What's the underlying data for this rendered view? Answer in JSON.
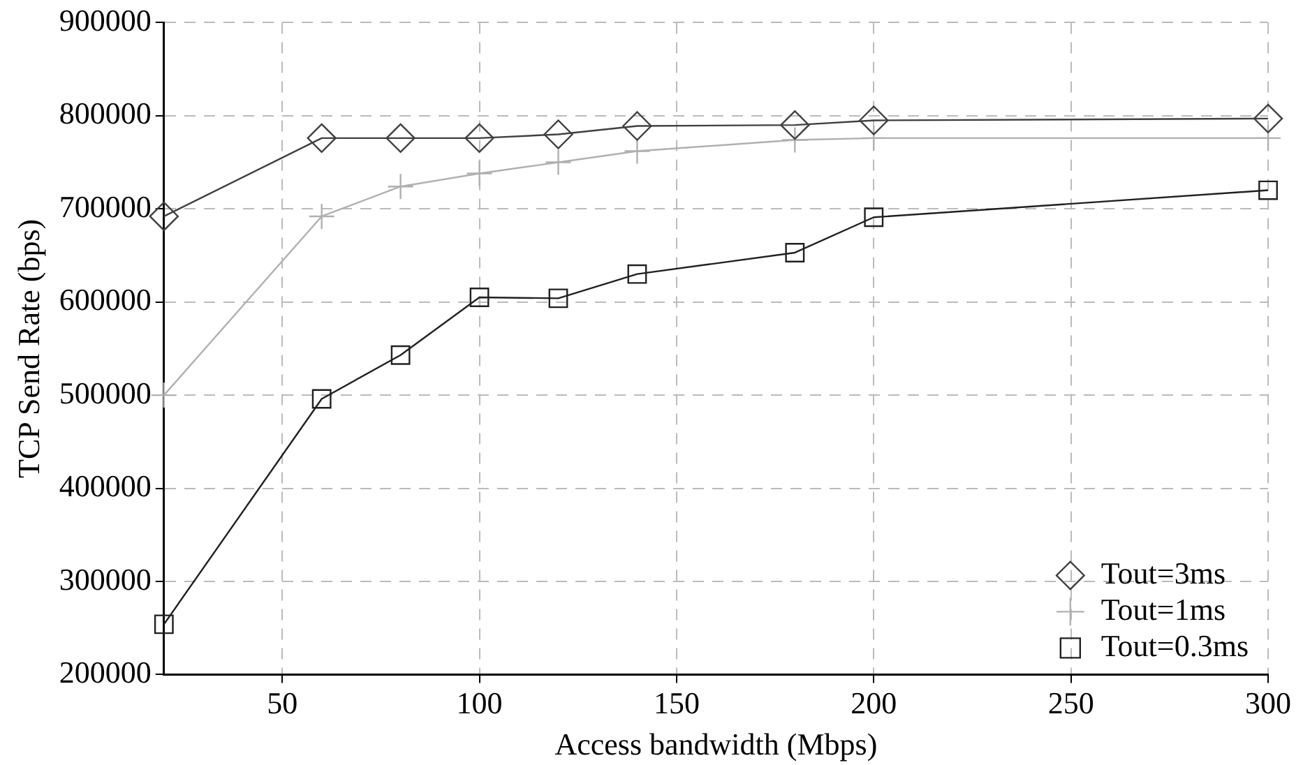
{
  "chart_data": {
    "type": "line",
    "xlabel": "Access bandwidth (Mbps)",
    "ylabel": "TCP Send Rate (bps)",
    "xlim": [
      20,
      300
    ],
    "xticks": [
      50,
      100,
      150,
      200,
      250,
      300
    ],
    "ylim": [
      200000,
      900000
    ],
    "yticks": [
      200000,
      300000,
      400000,
      500000,
      600000,
      700000,
      800000,
      900000
    ],
    "grid": true,
    "legend": "bottom right",
    "line_style": "solid",
    "x": [
      20,
      60,
      80,
      100,
      120,
      140,
      180,
      200,
      300
    ],
    "series": [
      {
        "name": "Tout=3ms",
        "color": "#404040",
        "marker": "diamond",
        "values": [
          692000,
          776000,
          776000,
          776000,
          780000,
          789000,
          790000,
          795000,
          797000
        ]
      },
      {
        "name": "Tout=1ms",
        "color": "#b0b0b0",
        "marker": "cross",
        "values": [
          500000,
          692000,
          724000,
          738000,
          750000,
          762000,
          774000,
          776000,
          776000
        ]
      },
      {
        "name": "Tout=0.3ms",
        "color": "#202020",
        "marker": "square",
        "values": [
          254000,
          496000,
          543000,
          605000,
          604000,
          630000,
          653000,
          691000,
          720000
        ]
      }
    ]
  }
}
